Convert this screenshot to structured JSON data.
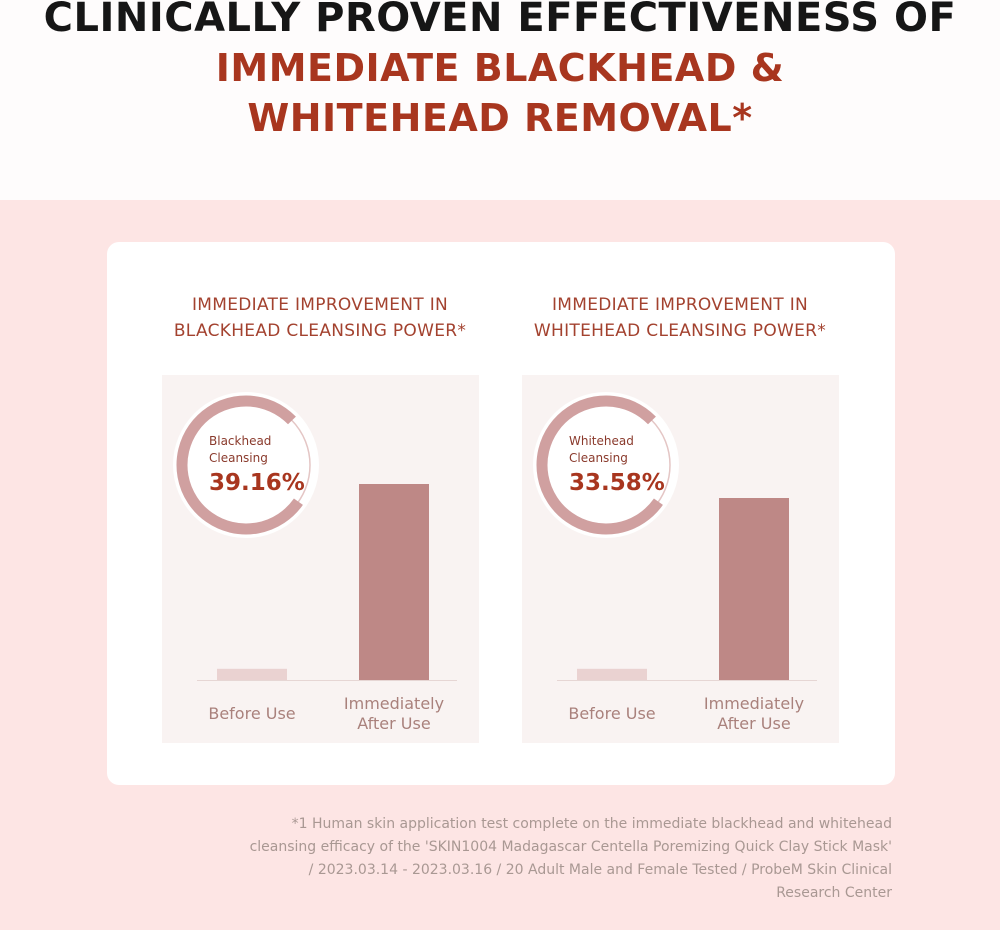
{
  "header": {
    "line1": "CLINICALLY PROVEN EFFECTIVENESS OF",
    "line2": "IMMEDIATE BLACKHEAD &",
    "line3": "WHITEHEAD REMOVAL*"
  },
  "colors": {
    "accent": "#a8361f",
    "bar_after": "#be8886",
    "bar_before": "#ead2d1",
    "ring": "#d0a0a0",
    "background_pink": "#fde5e4"
  },
  "chart_data": [
    {
      "type": "bar",
      "title_line1": "IMMEDIATE IMPROVEMENT IN",
      "title_line2": "BLACKHEAD CLEANSING POWER*",
      "categories": [
        {
          "line1": "Before Use",
          "line2": ""
        },
        {
          "line1": "Immediately",
          "line2": "After Use"
        }
      ],
      "values": [
        4,
        70
      ],
      "ylim": [
        0,
        100
      ],
      "badge": {
        "label_line1": "Blackhead",
        "label_line2": "Cleansing",
        "value": "39.16%",
        "fraction": 0.78
      }
    },
    {
      "type": "bar",
      "title_line1": "IMMEDIATE IMPROVEMENT IN",
      "title_line2": "WHITEHEAD CLEANSING POWER*",
      "categories": [
        {
          "line1": "Before Use",
          "line2": ""
        },
        {
          "line1": "Immediately",
          "line2": "After Use"
        }
      ],
      "values": [
        4,
        65
      ],
      "ylim": [
        0,
        100
      ],
      "badge": {
        "label_line1": "Whitehead",
        "label_line2": "Cleansing",
        "value": "33.58%",
        "fraction": 0.78
      }
    }
  ],
  "footnote": {
    "line1": "*1 Human skin application test complete on the immediate blackhead and whitehead",
    "line2": "cleansing efficacy of the 'SKIN1004 Madagascar Centella Poremizing Quick Clay Stick Mask'",
    "line3": "/ 2023.03.14 - 2023.03.16 / 20 Adult Male and Female Tested / ProbeM Skin Clinical",
    "line4": "Research Center"
  }
}
